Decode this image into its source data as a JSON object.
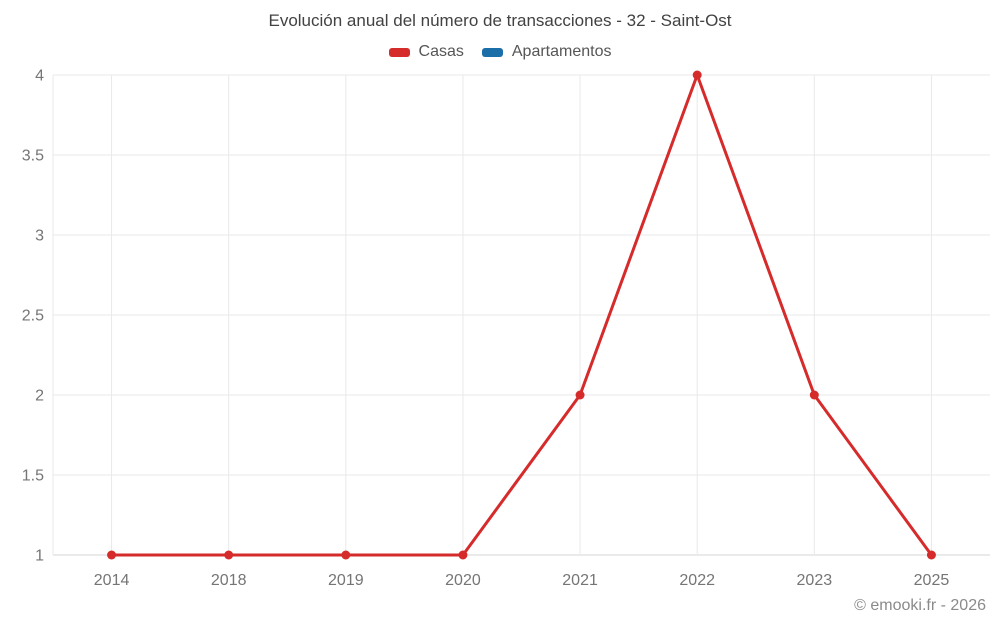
{
  "title": "Evolución anual del número de transacciones - 32 - Saint-Ost",
  "legend": {
    "items": [
      {
        "label": "Casas",
        "color": "#d62b2b"
      },
      {
        "label": "Apartamentos",
        "color": "#1a6fa8"
      }
    ]
  },
  "footer": {
    "copyright": "© emooki.fr - 2026"
  },
  "colors": {
    "background": "#ffffff",
    "grid": "#e9e9e9",
    "axis": "#d6d6d6",
    "tick_text": "#757575",
    "title_text": "#424242",
    "legend_text": "#565656",
    "footer_text": "#8a8a8a"
  },
  "chart_data": {
    "type": "line",
    "title": "Evolución anual del número de transacciones - 32 - Saint-Ost",
    "categories": [
      "2014",
      "2018",
      "2019",
      "2020",
      "2021",
      "2022",
      "2023",
      "2025"
    ],
    "series": [
      {
        "name": "Casas",
        "color": "#d62b2b",
        "values": [
          1,
          1,
          1,
          1,
          2,
          4,
          2,
          1
        ]
      },
      {
        "name": "Apartamentos",
        "color": "#1a6fa8",
        "values": []
      }
    ],
    "xlabel": "",
    "ylabel": "",
    "ylim": [
      1,
      4
    ],
    "yticks": [
      1,
      1.5,
      2,
      2.5,
      3,
      3.5,
      4
    ],
    "grid": true,
    "legend_position": "top",
    "marker_radius": 4.5,
    "line_width": 3
  }
}
